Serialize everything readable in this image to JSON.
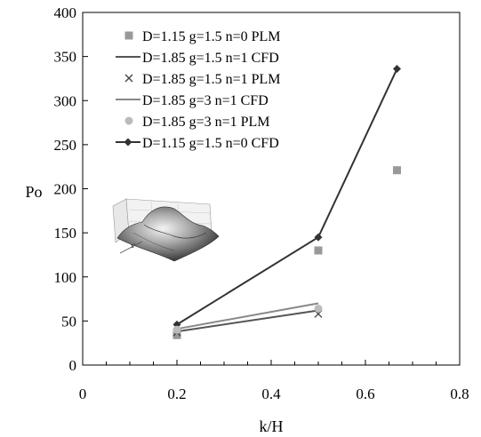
{
  "chart_data": {
    "type": "line",
    "title": "",
    "xlabel": "k/H",
    "ylabel": "Po",
    "xlim": [
      0,
      0.8
    ],
    "ylim": [
      0,
      400
    ],
    "x_ticks": [
      "0",
      "0.2",
      "0.4",
      "0.6",
      "0.8"
    ],
    "y_ticks": [
      "0",
      "50",
      "100",
      "150",
      "200",
      "250",
      "300",
      "350",
      "400"
    ],
    "grid": false,
    "legend_position": "top-left",
    "series": [
      {
        "name": "D=1.15 g=1.5 n=0 PLM",
        "style": "square-marker",
        "color": "#999999",
        "x": [
          0.2,
          0.5,
          0.667
        ],
        "y": [
          34,
          130,
          221
        ]
      },
      {
        "name": "D=1.85 g=1.5 n=1 CFD",
        "style": "line",
        "color": "#555555",
        "x": [
          0.2,
          0.5
        ],
        "y": [
          38,
          62
        ]
      },
      {
        "name": "D=1.85 g=1.5 n=1 PLM",
        "style": "x-marker",
        "color": "#444444",
        "x": [
          0.2,
          0.5
        ],
        "y": [
          37,
          58
        ]
      },
      {
        "name": "D=1.85 g=3 n=1 CFD",
        "style": "line",
        "color": "#888888",
        "x": [
          0.2,
          0.5
        ],
        "y": [
          41,
          70
        ]
      },
      {
        "name": "D=1.85 g=3 n=1 PLM",
        "style": "circle-marker",
        "color": "#bbbbbb",
        "x": [
          0.2,
          0.5
        ],
        "y": [
          40,
          64
        ]
      },
      {
        "name": "D=1.15 g=1.5 n=0 CFD",
        "style": "line-diamond",
        "color": "#333333",
        "x": [
          0.2,
          0.5,
          0.667
        ],
        "y": [
          46,
          145,
          336
        ]
      }
    ]
  }
}
